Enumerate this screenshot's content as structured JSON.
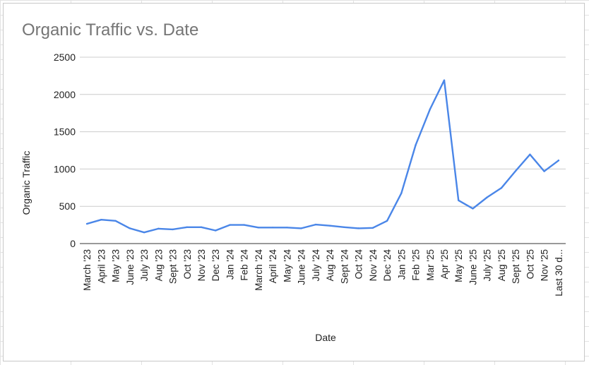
{
  "chart_data": {
    "type": "line",
    "title": "Organic Traffic vs. Date",
    "xlabel": "Date",
    "ylabel": "Organic Traffic",
    "ylim": [
      0,
      2500
    ],
    "yticks": [
      0,
      500,
      1000,
      1500,
      2000,
      2500
    ],
    "grid": true,
    "legend": "none",
    "line_color": "#4a86e8",
    "categories": [
      "March '23",
      "April '23",
      "May '23",
      "June '23",
      "July '23",
      "Aug '23",
      "Sept '23",
      "Oct '23",
      "Nov '23",
      "Dec '23",
      "Jan '24",
      "Feb '24",
      "March '24",
      "April '24",
      "May '24",
      "June '24",
      "July '24",
      "Aug '24",
      "Sept '24",
      "Oct '24",
      "Nov '24",
      "Dec '24",
      "Jan '25",
      "Feb '25",
      "Mar '25",
      "Apr '25",
      "May '25",
      "June '25",
      "July '25",
      "Aug '25",
      "Sept '25",
      "Oct '25",
      "Nov '25",
      "Last 30 d..."
    ],
    "series": [
      {
        "values": [
          265,
          320,
          305,
          205,
          150,
          200,
          190,
          220,
          220,
          175,
          250,
          250,
          215,
          215,
          215,
          205,
          255,
          240,
          220,
          205,
          210,
          305,
          675,
          1320,
          1800,
          2190,
          580,
          470,
          620,
          745,
          975,
          1195,
          970,
          1115
        ]
      }
    ]
  }
}
